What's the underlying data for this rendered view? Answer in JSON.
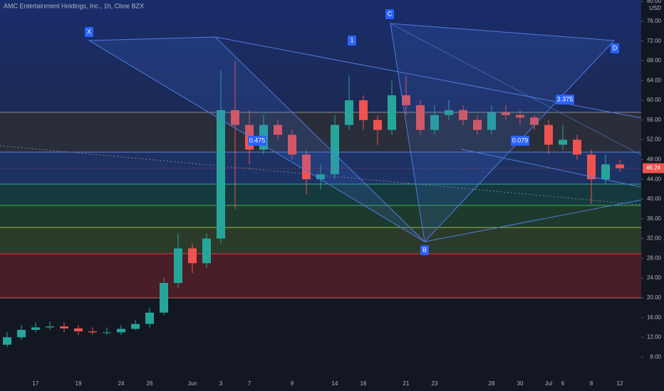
{
  "chart_data": {
    "type": "candlestick",
    "title": "AMC Entertainment Holdings, Inc., 1h, Cboe BZX",
    "currency": "USD",
    "categories": [
      null,
      null,
      "17",
      null,
      null,
      "19",
      null,
      null,
      "24",
      null,
      "26",
      null,
      null,
      "Jun",
      null,
      "3",
      null,
      "7",
      null,
      null,
      "9",
      null,
      null,
      "14",
      null,
      "16",
      null,
      null,
      "21",
      null,
      "23",
      null,
      null,
      null,
      "28",
      null,
      "30",
      null,
      "Jul",
      "6",
      null,
      "8",
      null,
      "12"
    ],
    "open": [
      10.5,
      12,
      13.5,
      14,
      14.2,
      13.8,
      13.2,
      13,
      13,
      13.7,
      14.7,
      17,
      23,
      30,
      27,
      32,
      58,
      55,
      50,
      55,
      53,
      49,
      44,
      45,
      55,
      60,
      56,
      54,
      61,
      59,
      54,
      57,
      58,
      56,
      54,
      57.5,
      57,
      56.5,
      55,
      51,
      52,
      49,
      44,
      47
    ],
    "high": [
      13,
      14.5,
      15,
      15.2,
      15,
      14.5,
      14,
      14,
      14.5,
      15.5,
      18,
      24,
      33,
      31,
      33,
      66,
      68,
      58,
      57,
      56,
      54,
      50,
      47,
      57,
      65,
      61,
      57,
      64,
      65,
      60,
      59,
      60,
      59,
      57,
      59,
      59,
      58,
      57,
      56,
      55,
      53,
      50,
      49,
      48
    ],
    "low": [
      10,
      11.5,
      13,
      13.5,
      13,
      12.5,
      12.5,
      12.5,
      12.5,
      13.5,
      14,
      16.5,
      22,
      25,
      26,
      31,
      38,
      47,
      49,
      52,
      48,
      41,
      42,
      44,
      54,
      54,
      51,
      53,
      57,
      53,
      53,
      56,
      55,
      53,
      53,
      56,
      55,
      54,
      49,
      50,
      48,
      39,
      43,
      45.5
    ],
    "close": [
      12,
      13.5,
      14,
      14.2,
      13.8,
      13.2,
      13,
      13,
      13.7,
      14.7,
      17,
      23,
      30,
      27,
      32,
      58,
      55,
      50,
      55,
      53,
      49,
      44,
      45,
      55,
      60,
      56,
      54,
      61,
      59,
      54,
      57,
      58,
      56,
      54,
      57.5,
      57,
      56.5,
      55,
      51,
      52,
      49,
      44,
      47,
      46.24
    ],
    "up_color": "#26a69a",
    "down_color": "#ef5350",
    "ylim": [
      4,
      80.3
    ],
    "yticks": [
      {
        "value": 8,
        "label": "8.00"
      },
      {
        "value": 12,
        "label": "12.00"
      },
      {
        "value": 16,
        "label": "16.00"
      },
      {
        "value": 20,
        "label": "20.00"
      },
      {
        "value": 24,
        "label": "24.00"
      },
      {
        "value": 28,
        "label": "28.00"
      },
      {
        "value": 32,
        "label": "32.00"
      },
      {
        "value": 36,
        "label": "36.00"
      },
      {
        "value": 40,
        "label": "40.00"
      },
      {
        "value": 44,
        "label": "44.00"
      },
      {
        "value": 48,
        "label": "48.00"
      },
      {
        "value": 52,
        "label": "52.00"
      },
      {
        "value": 56,
        "label": "56.00"
      },
      {
        "value": 60,
        "label": "60.00"
      },
      {
        "value": 64,
        "label": "64.00"
      },
      {
        "value": 68,
        "label": "68.00"
      },
      {
        "value": 72,
        "label": "72.00"
      },
      {
        "value": 76,
        "label": "76.00"
      },
      {
        "value": 80,
        "label": "80.00"
      }
    ],
    "annotations": [
      "X",
      "1",
      "C",
      "B",
      "D",
      "0.475",
      "0.079",
      "3.375"
    ]
  }
}
